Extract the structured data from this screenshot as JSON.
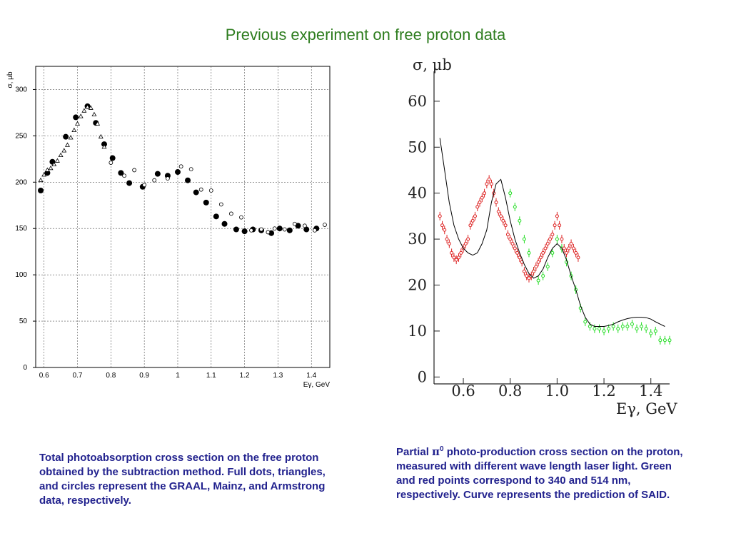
{
  "page": {
    "title": "Previous experiment on free proton data",
    "caption_left": "Total photoabsorption cross section on the free proton obtained by the subtraction method.  Full dots, triangles, and circles represent the GRAAL, Mainz, and Armstrong data, respectively.",
    "caption_right_prefix": "Partial ",
    "caption_right_symbol": "π",
    "caption_right_sup": "0",
    "caption_right_rest": " photo-production cross section on the proton, measured with different wave length laser light. Green and red points correspond to 340 and 514 nm, respectively. Curve represents the prediction of SAID."
  },
  "chart_data": [
    {
      "type": "scatter",
      "xlabel": "Eγ, GeV",
      "ylabel": "σ, μb",
      "xlim": [
        0.575,
        1.455
      ],
      "ylim": [
        0,
        325
      ],
      "xticks": [
        0.6,
        0.7,
        0.8,
        0.9,
        1.0,
        1.1,
        1.2,
        1.3,
        1.4
      ],
      "xtick_labels": [
        "0.6",
        "0.7",
        "0.8",
        "0.9",
        "1",
        "1.1",
        "1.2",
        "1.3",
        "1.4"
      ],
      "yticks": [
        0,
        50,
        100,
        150,
        200,
        250,
        300
      ],
      "ytick_labels": [
        "0",
        "50",
        "100",
        "150",
        "200",
        "250",
        "300"
      ],
      "grid": true,
      "series": [
        {
          "name": "GRAAL",
          "marker": "filled-circle",
          "x": [
            0.59,
            0.61,
            0.625,
            0.665,
            0.695,
            0.73,
            0.755,
            0.78,
            0.805,
            0.83,
            0.855,
            0.895,
            0.94,
            0.97,
            1.0,
            1.03,
            1.055,
            1.085,
            1.115,
            1.14,
            1.175,
            1.2,
            1.225,
            1.25,
            1.28,
            1.305,
            1.335,
            1.36,
            1.385,
            1.415
          ],
          "y": [
            191,
            210,
            222,
            249,
            270,
            282,
            264,
            241,
            226,
            210,
            199,
            195,
            209,
            207,
            211,
            202,
            189,
            178,
            163,
            155,
            149,
            147,
            149,
            148,
            145,
            150,
            148,
            153,
            149,
            150
          ]
        },
        {
          "name": "Mainz",
          "marker": "open-triangle",
          "x": [
            0.59,
            0.6,
            0.61,
            0.62,
            0.63,
            0.64,
            0.65,
            0.66,
            0.67,
            0.68,
            0.69,
            0.7,
            0.71,
            0.72,
            0.73,
            0.74,
            0.75,
            0.76,
            0.77,
            0.78
          ],
          "y": [
            202,
            208,
            213,
            215,
            219,
            223,
            229,
            234,
            240,
            248,
            256,
            263,
            271,
            277,
            281,
            280,
            273,
            263,
            249,
            238
          ]
        },
        {
          "name": "Armstrong",
          "marker": "open-circle",
          "x": [
            0.8,
            0.84,
            0.87,
            0.9,
            0.93,
            0.97,
            1.01,
            1.04,
            1.07,
            1.1,
            1.13,
            1.16,
            1.19,
            1.22,
            1.25,
            1.27,
            1.29,
            1.32,
            1.35,
            1.38,
            1.41,
            1.44
          ],
          "y": [
            221,
            207,
            213,
            197,
            202,
            204,
            217,
            214,
            192,
            191,
            176,
            166,
            162,
            148,
            149,
            146,
            150,
            149,
            155,
            153,
            148,
            154
          ]
        }
      ]
    },
    {
      "type": "scatter",
      "xlabel": "Eγ, GeV",
      "ylabel": "σ, μb",
      "xlim": [
        0.475,
        1.48
      ],
      "ylim": [
        -1.5,
        66.5
      ],
      "xticks": [
        0.6,
        0.8,
        1.0,
        1.2,
        1.4
      ],
      "xtick_labels": [
        "0.6",
        "0.8",
        "1.0",
        "1.2",
        "1.4"
      ],
      "yticks": [
        0,
        10,
        20,
        30,
        40,
        50,
        60
      ],
      "ytick_labels": [
        "0",
        "10",
        "20",
        "30",
        "40",
        "50",
        "60"
      ],
      "colors": {
        "green": "#22dd22",
        "red": "#dd2222",
        "curve": "#000000"
      },
      "series": [
        {
          "name": "340 nm",
          "color": "#22dd22",
          "x": [
            0.8,
            0.82,
            0.84,
            0.86,
            0.88,
            0.9,
            0.92,
            0.94,
            0.96,
            0.98,
            1.0,
            1.02,
            1.04,
            1.06,
            1.08,
            1.1,
            1.12,
            1.14,
            1.16,
            1.18,
            1.2,
            1.22,
            1.24,
            1.26,
            1.28,
            1.3,
            1.32,
            1.34,
            1.36,
            1.38,
            1.4,
            1.42,
            1.44,
            1.46,
            1.48
          ],
          "y": [
            40,
            37,
            34,
            30,
            27,
            23,
            21,
            22,
            24,
            27,
            30,
            28,
            25,
            22,
            19,
            15,
            12,
            11,
            10.5,
            10.5,
            10,
            10.5,
            11,
            10.5,
            11,
            11,
            11.5,
            10.5,
            11,
            10.5,
            9.5,
            10,
            8,
            8,
            8
          ]
        },
        {
          "name": "514 nm",
          "color": "#dd2222",
          "x": [
            0.5,
            0.51,
            0.52,
            0.53,
            0.54,
            0.55,
            0.56,
            0.57,
            0.58,
            0.59,
            0.6,
            0.61,
            0.62,
            0.63,
            0.64,
            0.65,
            0.66,
            0.67,
            0.68,
            0.69,
            0.7,
            0.71,
            0.72,
            0.73,
            0.74,
            0.75,
            0.76,
            0.77,
            0.78,
            0.79,
            0.8,
            0.81,
            0.82,
            0.83,
            0.84,
            0.85,
            0.86,
            0.87,
            0.88,
            0.89,
            0.9,
            0.91,
            0.92,
            0.93,
            0.94,
            0.95,
            0.96,
            0.97,
            0.98,
            0.99,
            1.0,
            1.01,
            1.02,
            1.03,
            1.04,
            1.05,
            1.06,
            1.07,
            1.08,
            1.09
          ],
          "y": [
            35,
            33,
            32,
            30,
            29,
            27,
            26,
            25.5,
            26,
            27,
            28,
            29,
            30,
            33,
            34,
            35,
            37,
            38,
            39,
            40,
            42,
            43,
            42,
            40,
            38,
            36,
            35,
            34,
            33,
            31,
            30,
            29,
            28,
            27,
            26,
            25,
            23,
            22,
            21.5,
            22,
            23,
            24,
            25,
            26,
            27,
            28,
            29,
            30,
            31,
            33,
            35,
            33,
            30,
            28,
            27,
            28,
            29,
            28,
            27,
            26
          ]
        },
        {
          "name": "SAID",
          "style": "line",
          "color": "#000000",
          "x": [
            0.5,
            0.52,
            0.54,
            0.56,
            0.58,
            0.6,
            0.62,
            0.64,
            0.66,
            0.68,
            0.7,
            0.72,
            0.74,
            0.76,
            0.78,
            0.8,
            0.82,
            0.84,
            0.86,
            0.88,
            0.9,
            0.92,
            0.94,
            0.96,
            0.98,
            1.0,
            1.02,
            1.04,
            1.06,
            1.08,
            1.1,
            1.12,
            1.14,
            1.16,
            1.18,
            1.2,
            1.22,
            1.24,
            1.26,
            1.28,
            1.3,
            1.32,
            1.34,
            1.36,
            1.38,
            1.4,
            1.42,
            1.44,
            1.46
          ],
          "y": [
            52,
            45,
            38,
            33,
            30,
            28,
            27,
            26.5,
            27,
            29,
            32,
            38,
            42,
            43,
            39,
            34,
            30,
            27,
            24.5,
            22.5,
            21.5,
            22,
            23.5,
            26,
            28,
            29,
            28,
            25.5,
            22,
            19,
            15.5,
            13,
            11.5,
            11,
            11,
            11,
            11.2,
            11.5,
            12,
            12.4,
            12.7,
            12.9,
            13,
            13,
            12.9,
            12.6,
            12,
            11.5,
            11
          ]
        }
      ]
    }
  ]
}
